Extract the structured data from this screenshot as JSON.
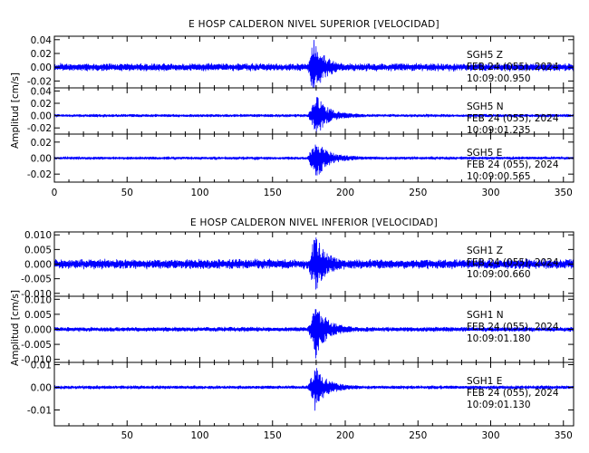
{
  "chart_data": [
    {
      "type": "line",
      "title": "E HOSP CALDERON NIVEL SUPERIOR [VELOCIDAD]",
      "ylabel": "Amplitud [cm/s]",
      "xlim": [
        0,
        357
      ],
      "xticks": [
        "0",
        "50",
        "100",
        "150",
        "200",
        "250",
        "300",
        "350"
      ],
      "show_x_tick_labels": true,
      "color": "#0000ff",
      "channels": [
        {
          "station": "SGH5",
          "component": "Z",
          "date": "FEB 24 (055), 2024",
          "time": "10:09:00.950",
          "ylim": [
            -0.03,
            0.045
          ],
          "yticks": [
            "0.04",
            "0.02",
            "0.00",
            "-0.02"
          ],
          "onset": 174,
          "peak_at": 178,
          "peak": 0.038,
          "noise": 0.006
        },
        {
          "station": "SGH5",
          "component": "N",
          "date": "FEB 24 (055), 2024",
          "time": "10:09:01.235",
          "ylim": [
            -0.03,
            0.045
          ],
          "yticks": [
            "0.04",
            "0.02",
            "0.00",
            "-0.02"
          ],
          "onset": 174,
          "peak_at": 180,
          "peak": 0.03,
          "noise": 0.0025
        },
        {
          "station": "SGH5",
          "component": "E",
          "date": "FEB 24 (055), 2024",
          "time": "10:09:00.565",
          "ylim": [
            -0.03,
            0.03
          ],
          "yticks": [
            "0.02",
            "0.00",
            "-0.02"
          ],
          "onset": 174,
          "peak_at": 179,
          "peak": 0.025,
          "noise": 0.002
        }
      ]
    },
    {
      "type": "line",
      "title": "E HOSP CALDERON NIVEL INFERIOR [VELOCIDAD]",
      "ylabel": "Amplitud [cm/s]",
      "xlim": [
        0,
        357
      ],
      "xticks": [
        "50",
        "100",
        "150",
        "200",
        "250",
        "300",
        "350"
      ],
      "show_x_tick_labels": true,
      "color": "#0000ff",
      "channels": [
        {
          "station": "SGH1",
          "component": "Z",
          "date": "FEB 24 (055), 2024",
          "time": "10:09:00.660",
          "ylim": [
            -0.011,
            0.011
          ],
          "yticks": [
            "0.010",
            "0.005",
            "0.000",
            "-0.005",
            "-0.010"
          ],
          "onset": 174,
          "peak_at": 179,
          "peak": 0.0095,
          "noise": 0.0018
        },
        {
          "station": "SGH1",
          "component": "N",
          "date": "FEB 24 (055), 2024",
          "time": "10:09:01.180",
          "ylim": [
            -0.011,
            0.011
          ],
          "yticks": [
            "0.010",
            "0.005",
            "0.000",
            "-0.005",
            "-0.010"
          ],
          "onset": 174,
          "peak_at": 179,
          "peak": 0.0085,
          "noise": 0.0008
        },
        {
          "station": "SGH1",
          "component": "E",
          "date": "FEB 24 (055), 2024",
          "time": "10:09:01.130",
          "ylim": [
            -0.017,
            0.011
          ],
          "yticks": [
            "0.01",
            "0.00",
            "-0.01"
          ],
          "onset": 174,
          "peak_at": 179,
          "peak": 0.0085,
          "noise": 0.0008
        }
      ]
    }
  ]
}
